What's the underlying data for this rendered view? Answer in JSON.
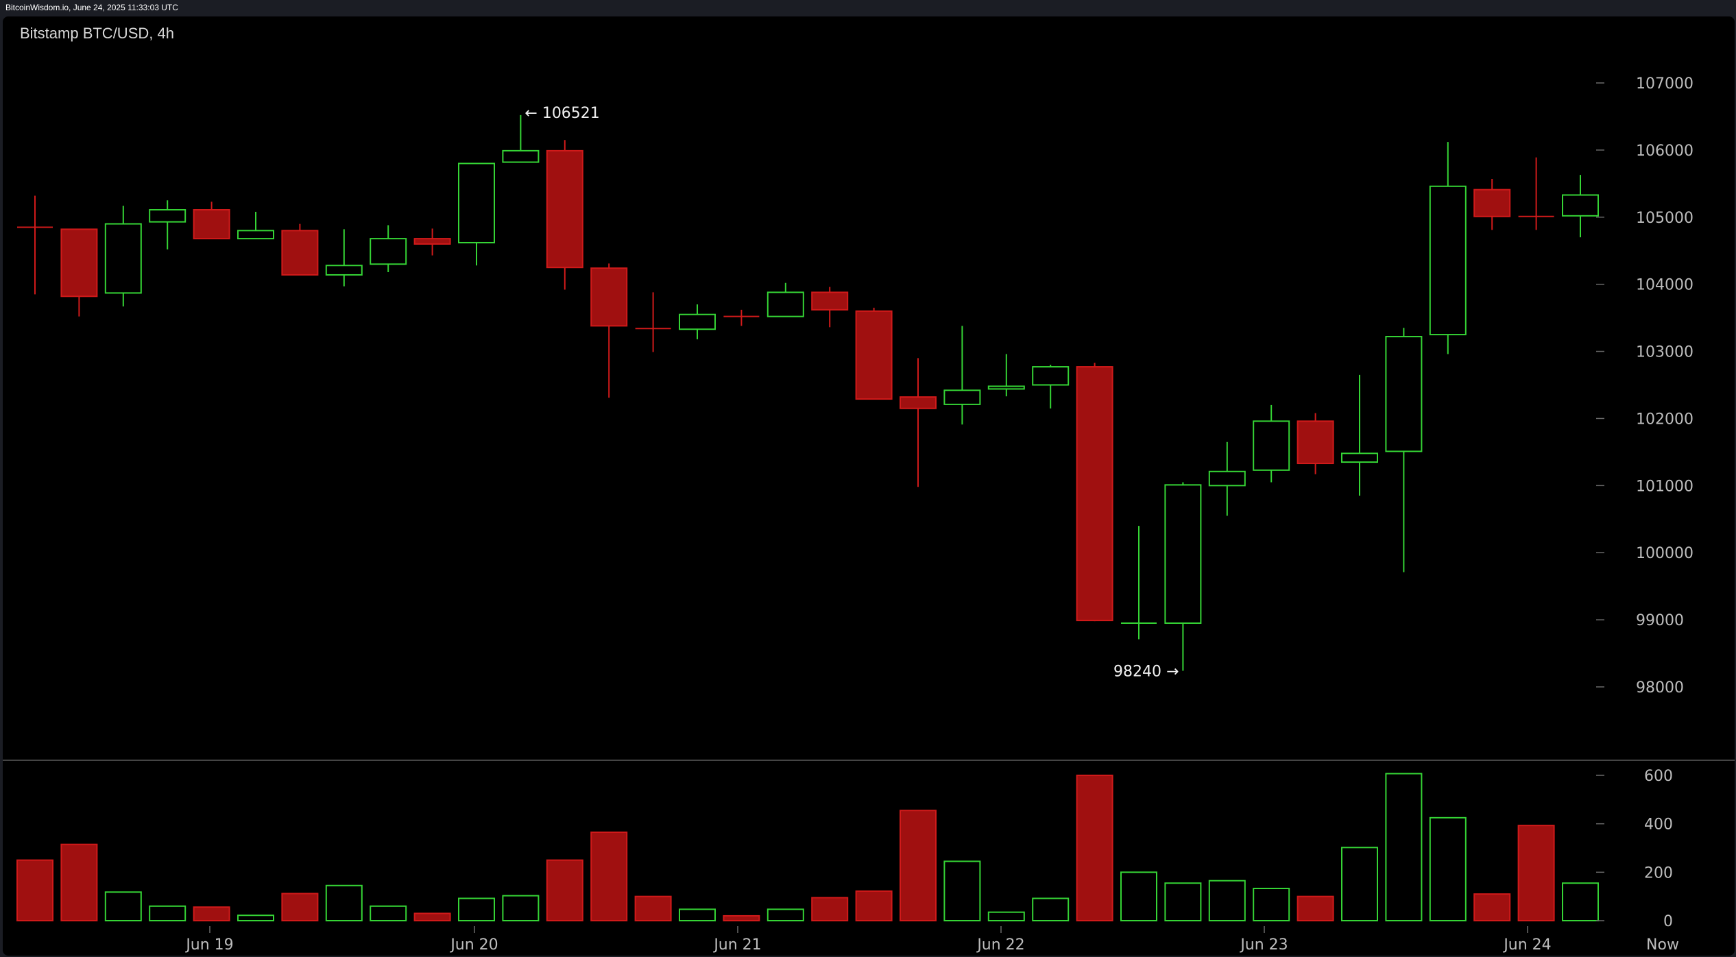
{
  "header": {
    "source_line": "BitcoinWisdom.io, June 24, 2025 11:33:03 UTC"
  },
  "chart_data": {
    "type": "candlestick",
    "title": "Bitstamp BTC/USD, 4h",
    "price_axis": {
      "ticks": [
        98000,
        99000,
        100000,
        101000,
        102000,
        103000,
        104000,
        105000,
        106000,
        107000
      ],
      "range": [
        97200,
        107800
      ]
    },
    "volume_axis": {
      "ticks": [
        0,
        200,
        400,
        600
      ],
      "range": [
        0,
        700
      ]
    },
    "x_labels": [
      "Jun 19",
      "Jun 20",
      "Jun 21",
      "Jun 22",
      "Jun 23",
      "Jun 24",
      "Now"
    ],
    "colors": {
      "up": "#35d435",
      "down": "#a01010",
      "down_edge": "#d01a1a"
    },
    "annotations": [
      {
        "text": "← 106521",
        "candle_index": 11,
        "value": 106521,
        "position": "high"
      },
      {
        "text": "98240 →",
        "candle_index": 26,
        "value": 98240,
        "position": "low"
      }
    ],
    "candles": [
      {
        "o": 104850,
        "h": 105320,
        "l": 103850,
        "c": 104850,
        "v": 250
      },
      {
        "o": 104820,
        "h": 104820,
        "l": 103520,
        "c": 103820,
        "v": 315
      },
      {
        "o": 103870,
        "h": 105170,
        "l": 103670,
        "c": 104900,
        "v": 118
      },
      {
        "o": 104930,
        "h": 105250,
        "l": 104520,
        "c": 105110,
        "v": 60
      },
      {
        "o": 105110,
        "h": 105230,
        "l": 104680,
        "c": 104680,
        "v": 56
      },
      {
        "o": 104680,
        "h": 105080,
        "l": 104680,
        "c": 104800,
        "v": 22
      },
      {
        "o": 104800,
        "h": 104900,
        "l": 104140,
        "c": 104140,
        "v": 112
      },
      {
        "o": 104140,
        "h": 104820,
        "l": 103970,
        "c": 104280,
        "v": 145
      },
      {
        "o": 104300,
        "h": 104880,
        "l": 104180,
        "c": 104680,
        "v": 60
      },
      {
        "o": 104680,
        "h": 104830,
        "l": 104430,
        "c": 104600,
        "v": 30
      },
      {
        "o": 104620,
        "h": 105800,
        "l": 104280,
        "c": 105800,
        "v": 92
      },
      {
        "o": 105820,
        "h": 106521,
        "l": 105820,
        "c": 105990,
        "v": 103
      },
      {
        "o": 105990,
        "h": 106150,
        "l": 103920,
        "c": 104250,
        "v": 250
      },
      {
        "o": 104240,
        "h": 104310,
        "l": 102310,
        "c": 103380,
        "v": 365
      },
      {
        "o": 103340,
        "h": 103880,
        "l": 102990,
        "c": 103330,
        "v": 100
      },
      {
        "o": 103330,
        "h": 103700,
        "l": 103180,
        "c": 103550,
        "v": 47
      },
      {
        "o": 103520,
        "h": 103620,
        "l": 103380,
        "c": 103510,
        "v": 20
      },
      {
        "o": 103520,
        "h": 104020,
        "l": 103520,
        "c": 103880,
        "v": 47
      },
      {
        "o": 103880,
        "h": 103960,
        "l": 103360,
        "c": 103620,
        "v": 95
      },
      {
        "o": 103600,
        "h": 103650,
        "l": 102280,
        "c": 102290,
        "v": 122
      },
      {
        "o": 102320,
        "h": 102900,
        "l": 100980,
        "c": 102150,
        "v": 455
      },
      {
        "o": 102210,
        "h": 103380,
        "l": 101910,
        "c": 102420,
        "v": 245
      },
      {
        "o": 102440,
        "h": 102960,
        "l": 102330,
        "c": 102480,
        "v": 35
      },
      {
        "o": 102500,
        "h": 102800,
        "l": 102150,
        "c": 102770,
        "v": 92
      },
      {
        "o": 102770,
        "h": 102830,
        "l": 98980,
        "c": 98990,
        "v": 600
      },
      {
        "o": 98950,
        "h": 100400,
        "l": 98710,
        "c": 98960,
        "v": 200
      },
      {
        "o": 98950,
        "h": 101050,
        "l": 98240,
        "c": 101010,
        "v": 155
      },
      {
        "o": 101000,
        "h": 101650,
        "l": 100550,
        "c": 101210,
        "v": 165
      },
      {
        "o": 101230,
        "h": 102200,
        "l": 101050,
        "c": 101960,
        "v": 133
      },
      {
        "o": 101960,
        "h": 102080,
        "l": 101170,
        "c": 101330,
        "v": 100
      },
      {
        "o": 101350,
        "h": 102650,
        "l": 100850,
        "c": 101480,
        "v": 302
      },
      {
        "o": 101510,
        "h": 103350,
        "l": 99710,
        "c": 103220,
        "v": 607
      },
      {
        "o": 103250,
        "h": 106120,
        "l": 102960,
        "c": 105460,
        "v": 425
      },
      {
        "o": 105410,
        "h": 105570,
        "l": 104810,
        "c": 105010,
        "v": 110
      },
      {
        "o": 105010,
        "h": 105890,
        "l": 104810,
        "c": 105010,
        "v": 393
      },
      {
        "o": 105020,
        "h": 105630,
        "l": 104700,
        "c": 105330,
        "v": 155
      }
    ]
  }
}
